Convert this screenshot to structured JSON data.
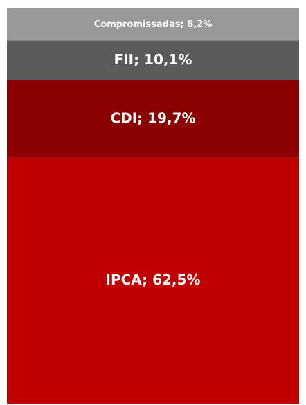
{
  "chart_data": {
    "type": "bar",
    "stacked": true,
    "values": [
      8.2,
      10.1,
      19.7,
      62.5
    ],
    "value_labels": [
      "Compromissadas; 8,2%",
      "FII; 10,1%",
      "CDI; 19,7%",
      "IPCA; 62,5%"
    ],
    "colors": [
      "#999999",
      "#5a5a5a",
      "#8b0000",
      "#c00000"
    ]
  }
}
